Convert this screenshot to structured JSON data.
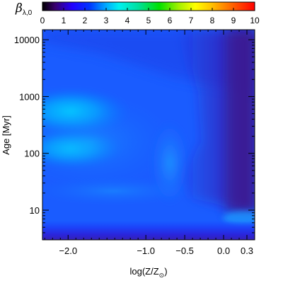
{
  "chart_data": {
    "type": "heatmap",
    "colorbar": {
      "label": "β",
      "label_sub": "λ,0",
      "min": 0,
      "max": 10,
      "ticks": [
        "0",
        "1",
        "2",
        "3",
        "4",
        "5",
        "6",
        "7",
        "8",
        "9",
        "10"
      ],
      "colormap": "rainbow (black-purple-blue-cyan-green-yellow-orange-red)"
    },
    "xaxis": {
      "label_main": "log(Z/Z",
      "label_sub": "⊙",
      "label_end": ")",
      "range": [
        -2.33,
        0.4
      ],
      "ticks": [
        {
          "value": -2.0,
          "label": "−2.0"
        },
        {
          "value": -1.0,
          "label": "−1.0"
        },
        {
          "value": -0.5,
          "label": "−0.5"
        },
        {
          "value": 0.0,
          "label": "0.0"
        },
        {
          "value": 0.3,
          "label": "0.3"
        }
      ]
    },
    "yaxis": {
      "label": "Age [Myr]",
      "scale": "log",
      "range": [
        3,
        15000
      ],
      "ticks": [
        {
          "value": 10,
          "label": "10"
        },
        {
          "value": 100,
          "label": "100"
        },
        {
          "value": 1000,
          "label": "1000"
        },
        {
          "value": 10000,
          "label": "10000"
        }
      ]
    },
    "grid": false,
    "features": [
      {
        "type": "band",
        "value_approx": 1.6,
        "age_range_myr": [
          5,
          8
        ],
        "z_range": [
          -2.33,
          0.4
        ]
      },
      {
        "type": "peak",
        "value_approx": 2.8,
        "z": -1.95,
        "age_myr": 400
      },
      {
        "type": "peak",
        "value_approx": 2.7,
        "z": -1.95,
        "age_myr": 160
      },
      {
        "type": "ridge",
        "value_approx": 2.3,
        "z_range": [
          -0.7,
          -0.55
        ],
        "age_range_myr": [
          15,
          300
        ]
      },
      {
        "type": "low_region",
        "value_approx": 1.0,
        "z_range": [
          0.0,
          0.4
        ],
        "age_range_myr": [
          10,
          15000
        ]
      }
    ]
  }
}
